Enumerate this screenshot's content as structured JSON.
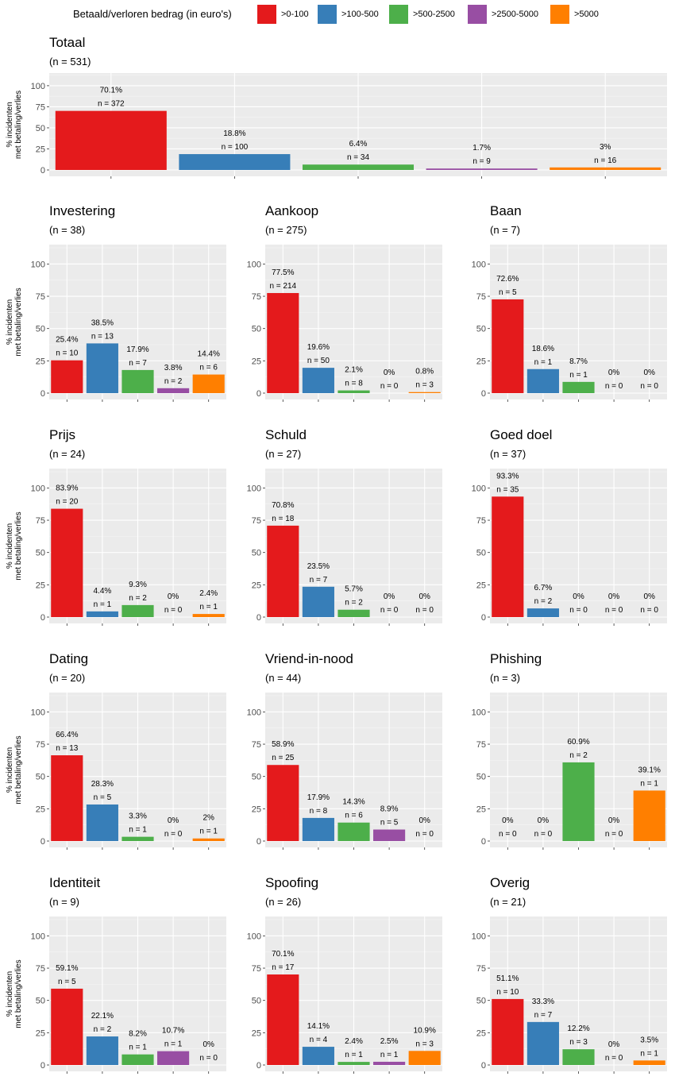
{
  "legend": {
    "title": "Betaald/verloren bedrag (in euro's)",
    "items": [
      {
        "label": ">0-100",
        "color": "#E41A1C"
      },
      {
        "label": ">100-500",
        "color": "#377EB8"
      },
      {
        "label": ">500-2500",
        "color": "#4DAF4A"
      },
      {
        "label": ">2500-5000",
        "color": "#984EA3"
      },
      {
        "label": ">5000",
        "color": "#FF7F00"
      }
    ]
  },
  "chart_data": {
    "type": "bar",
    "ylabel_line1": "% incidenten",
    "ylabel_line2": "met betaling/verlies",
    "ylim": [
      0,
      115
    ],
    "yticks": [
      0,
      25,
      50,
      75,
      100
    ],
    "grid": true,
    "panels": [
      {
        "title": "Totaal",
        "subtitle": "(n = 531)",
        "values": [
          70.1,
          18.8,
          6.4,
          1.7,
          3
        ],
        "pct_labels": [
          "70.1%",
          "18.8%",
          "6.4%",
          "1.7%",
          "3%"
        ],
        "n_labels": [
          "n = 372",
          "n = 100",
          "n = 34",
          "n = 9",
          "n = 16"
        ]
      },
      {
        "title": "Investering",
        "subtitle": "(n = 38)",
        "values": [
          25.4,
          38.5,
          17.9,
          3.8,
          14.4
        ],
        "pct_labels": [
          "25.4%",
          "38.5%",
          "17.9%",
          "3.8%",
          "14.4%"
        ],
        "n_labels": [
          "n = 10",
          "n = 13",
          "n = 7",
          "n = 2",
          "n = 6"
        ]
      },
      {
        "title": "Aankoop",
        "subtitle": "(n = 275)",
        "values": [
          77.5,
          19.6,
          2.1,
          0,
          0.8
        ],
        "pct_labels": [
          "77.5%",
          "19.6%",
          "2.1%",
          "0%",
          "0.8%"
        ],
        "n_labels": [
          "n = 214",
          "n = 50",
          "n = 8",
          "n = 0",
          "n = 3"
        ]
      },
      {
        "title": "Baan",
        "subtitle": "(n = 7)",
        "values": [
          72.6,
          18.6,
          8.7,
          0,
          0
        ],
        "pct_labels": [
          "72.6%",
          "18.6%",
          "8.7%",
          "0%",
          "0%"
        ],
        "n_labels": [
          "n = 5",
          "n = 1",
          "n = 1",
          "n = 0",
          "n = 0"
        ]
      },
      {
        "title": "Prijs",
        "subtitle": "(n = 24)",
        "values": [
          83.9,
          4.4,
          9.3,
          0,
          2.4
        ],
        "pct_labels": [
          "83.9%",
          "4.4%",
          "9.3%",
          "0%",
          "2.4%"
        ],
        "n_labels": [
          "n = 20",
          "n = 1",
          "n = 2",
          "n = 0",
          "n = 1"
        ]
      },
      {
        "title": "Schuld",
        "subtitle": "(n = 27)",
        "values": [
          70.8,
          23.5,
          5.7,
          0,
          0
        ],
        "pct_labels": [
          "70.8%",
          "23.5%",
          "5.7%",
          "0%",
          "0%"
        ],
        "n_labels": [
          "n = 18",
          "n = 7",
          "n = 2",
          "n = 0",
          "n = 0"
        ]
      },
      {
        "title": "Goed doel",
        "subtitle": "(n = 37)",
        "values": [
          93.3,
          6.7,
          0,
          0,
          0
        ],
        "pct_labels": [
          "93.3%",
          "6.7%",
          "0%",
          "0%",
          "0%"
        ],
        "n_labels": [
          "n = 35",
          "n = 2",
          "n = 0",
          "n = 0",
          "n = 0"
        ]
      },
      {
        "title": "Dating",
        "subtitle": "(n = 20)",
        "values": [
          66.4,
          28.3,
          3.3,
          0,
          2
        ],
        "pct_labels": [
          "66.4%",
          "28.3%",
          "3.3%",
          "0%",
          "2%"
        ],
        "n_labels": [
          "n = 13",
          "n = 5",
          "n = 1",
          "n = 0",
          "n = 1"
        ]
      },
      {
        "title": "Vriend-in-nood",
        "subtitle": "(n = 44)",
        "values": [
          58.9,
          17.9,
          14.3,
          8.9,
          0
        ],
        "pct_labels": [
          "58.9%",
          "17.9%",
          "14.3%",
          "8.9%",
          "0%"
        ],
        "n_labels": [
          "n = 25",
          "n = 8",
          "n = 6",
          "n = 5",
          "n = 0"
        ]
      },
      {
        "title": "Phishing",
        "subtitle": "(n = 3)",
        "values": [
          0,
          0,
          60.9,
          0,
          39.1
        ],
        "pct_labels": [
          "0%",
          "0%",
          "60.9%",
          "0%",
          "39.1%"
        ],
        "n_labels": [
          "n = 0",
          "n = 0",
          "n = 2",
          "n = 0",
          "n = 1"
        ]
      },
      {
        "title": "Identiteit",
        "subtitle": "(n = 9)",
        "values": [
          59.1,
          22.1,
          8.2,
          10.7,
          0
        ],
        "pct_labels": [
          "59.1%",
          "22.1%",
          "8.2%",
          "10.7%",
          "0%"
        ],
        "n_labels": [
          "n = 5",
          "n = 2",
          "n = 1",
          "n = 1",
          "n = 0"
        ]
      },
      {
        "title": "Spoofing",
        "subtitle": "(n = 26)",
        "values": [
          70.1,
          14.1,
          2.4,
          2.5,
          10.9
        ],
        "pct_labels": [
          "70.1%",
          "14.1%",
          "2.4%",
          "2.5%",
          "10.9%"
        ],
        "n_labels": [
          "n = 17",
          "n = 4",
          "n = 1",
          "n = 1",
          "n = 3"
        ]
      },
      {
        "title": "Overig",
        "subtitle": "(n = 21)",
        "values": [
          51.1,
          33.3,
          12.2,
          0,
          3.5
        ],
        "pct_labels": [
          "51.1%",
          "33.3%",
          "12.2%",
          "0%",
          "3.5%"
        ],
        "n_labels": [
          "n = 10",
          "n = 7",
          "n = 3",
          "n = 0",
          "n = 1"
        ]
      }
    ]
  }
}
